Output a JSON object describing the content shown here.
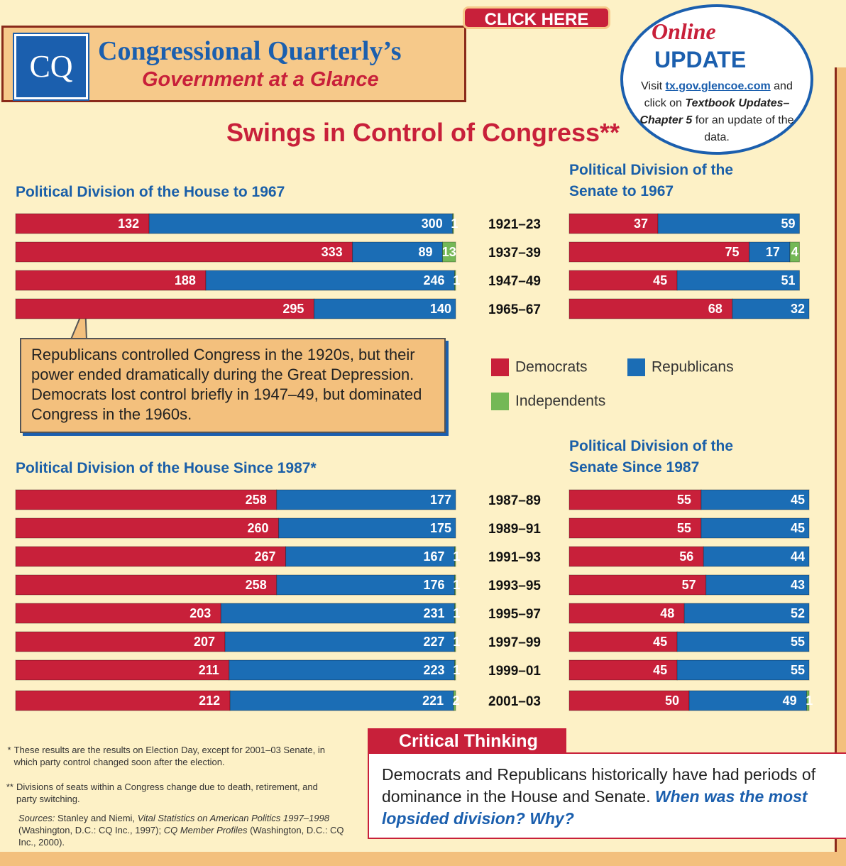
{
  "header": {
    "logo": "CQ",
    "title": "Congressional Quarterly’s",
    "subtitle": "Government at a Glance"
  },
  "click_here": "CLICK HERE",
  "online_update": {
    "online": "Online",
    "update": "UPDATE",
    "text": [
      "Visit",
      "tx.gov.glencoe.com",
      "and click on",
      "Textbook Updates–Chapter 5",
      "for an update of the data."
    ]
  },
  "main_title": "Swings in Control of Congress**",
  "callout": "Republicans controlled Congress in the 1920s, but their power ended dramatically during the Great Depression. Democrats lost control briefly in 1947–49, but dominated Congress in the 1960s.",
  "chart_data": [
    {
      "type": "bar",
      "orientation": "horizontal",
      "stacked": true,
      "title": "Political Division of the House to 1967",
      "categories": [
        "1921–23",
        "1937–39",
        "1947–49",
        "1965–67"
      ],
      "series": [
        {
          "name": "Democrats",
          "color": "#c8203a",
          "values": [
            132,
            333,
            188,
            295
          ]
        },
        {
          "name": "Republicans",
          "color": "#1b6db5",
          "values": [
            300,
            89,
            246,
            140
          ]
        },
        {
          "name": "Independents",
          "color": "#74b856",
          "values": [
            1,
            13,
            1,
            null
          ]
        }
      ],
      "xlim": [
        0,
        435
      ]
    },
    {
      "type": "bar",
      "orientation": "horizontal",
      "stacked": true,
      "title": "Political Division of the Senate to 1967",
      "series": [
        {
          "color": "#c8203a",
          "values": [
            37,
            75,
            45,
            68
          ]
        },
        {
          "color": "#1b6db5",
          "values": [
            59,
            17,
            51,
            32
          ]
        },
        {
          "color": "#74b856",
          "values": [
            null,
            4,
            null,
            null
          ]
        }
      ],
      "xlim": [
        0,
        100
      ]
    },
    {
      "type": "bar",
      "orientation": "horizontal",
      "stacked": true,
      "title": "Political Division of the House Since 1987*",
      "categories": [
        "1987–89",
        "1989–91",
        "1991–93",
        "1993–95",
        "1995–97",
        "1997–99",
        "1999–01",
        "2001–03"
      ],
      "series": [
        {
          "color": "#c8203a",
          "values": [
            258,
            260,
            267,
            258,
            203,
            207,
            211,
            212
          ]
        },
        {
          "color": "#1b6db5",
          "values": [
            177,
            175,
            167,
            176,
            231,
            227,
            223,
            221
          ]
        },
        {
          "color": "#74b856",
          "values": [
            null,
            null,
            1,
            1,
            1,
            1,
            1,
            2
          ]
        }
      ],
      "xlim": [
        0,
        435
      ]
    },
    {
      "type": "bar",
      "orientation": "horizontal",
      "stacked": true,
      "title": "Political Division of the Senate Since 1987",
      "series": [
        {
          "color": "#c8203a",
          "values": [
            55,
            55,
            56,
            57,
            48,
            45,
            45,
            50
          ]
        },
        {
          "color": "#1b6db5",
          "values": [
            45,
            45,
            44,
            43,
            52,
            55,
            55,
            49
          ]
        },
        {
          "color": "#74b856",
          "values": [
            null,
            null,
            null,
            null,
            null,
            null,
            null,
            1
          ]
        }
      ],
      "xlim": [
        0,
        100
      ]
    }
  ],
  "footnotes": [
    {
      "mark": "*",
      "text": "These results are the results on Election Day, except for 2001–03 Senate, in which party control changed soon after the election."
    },
    {
      "mark": "**",
      "text": "Divisions of seats within a Congress change due to death, retirement, and party switching."
    }
  ],
  "sources": [
    "Sources:",
    "Stanley and Niemi,",
    "Vital Statistics on American Politics 1997–1998",
    "(Washington, D.C.: CQ Inc., 1997);",
    "CQ Member Profiles",
    "(Washington, D.C.: CQ Inc., 2000)."
  ],
  "critical_thinking": {
    "heading": "Critical Thinking",
    "text": "Democrats and Republicans historically have had periods of dominance in the House and Senate.",
    "question": "When was the most lopsided division? Why?"
  }
}
